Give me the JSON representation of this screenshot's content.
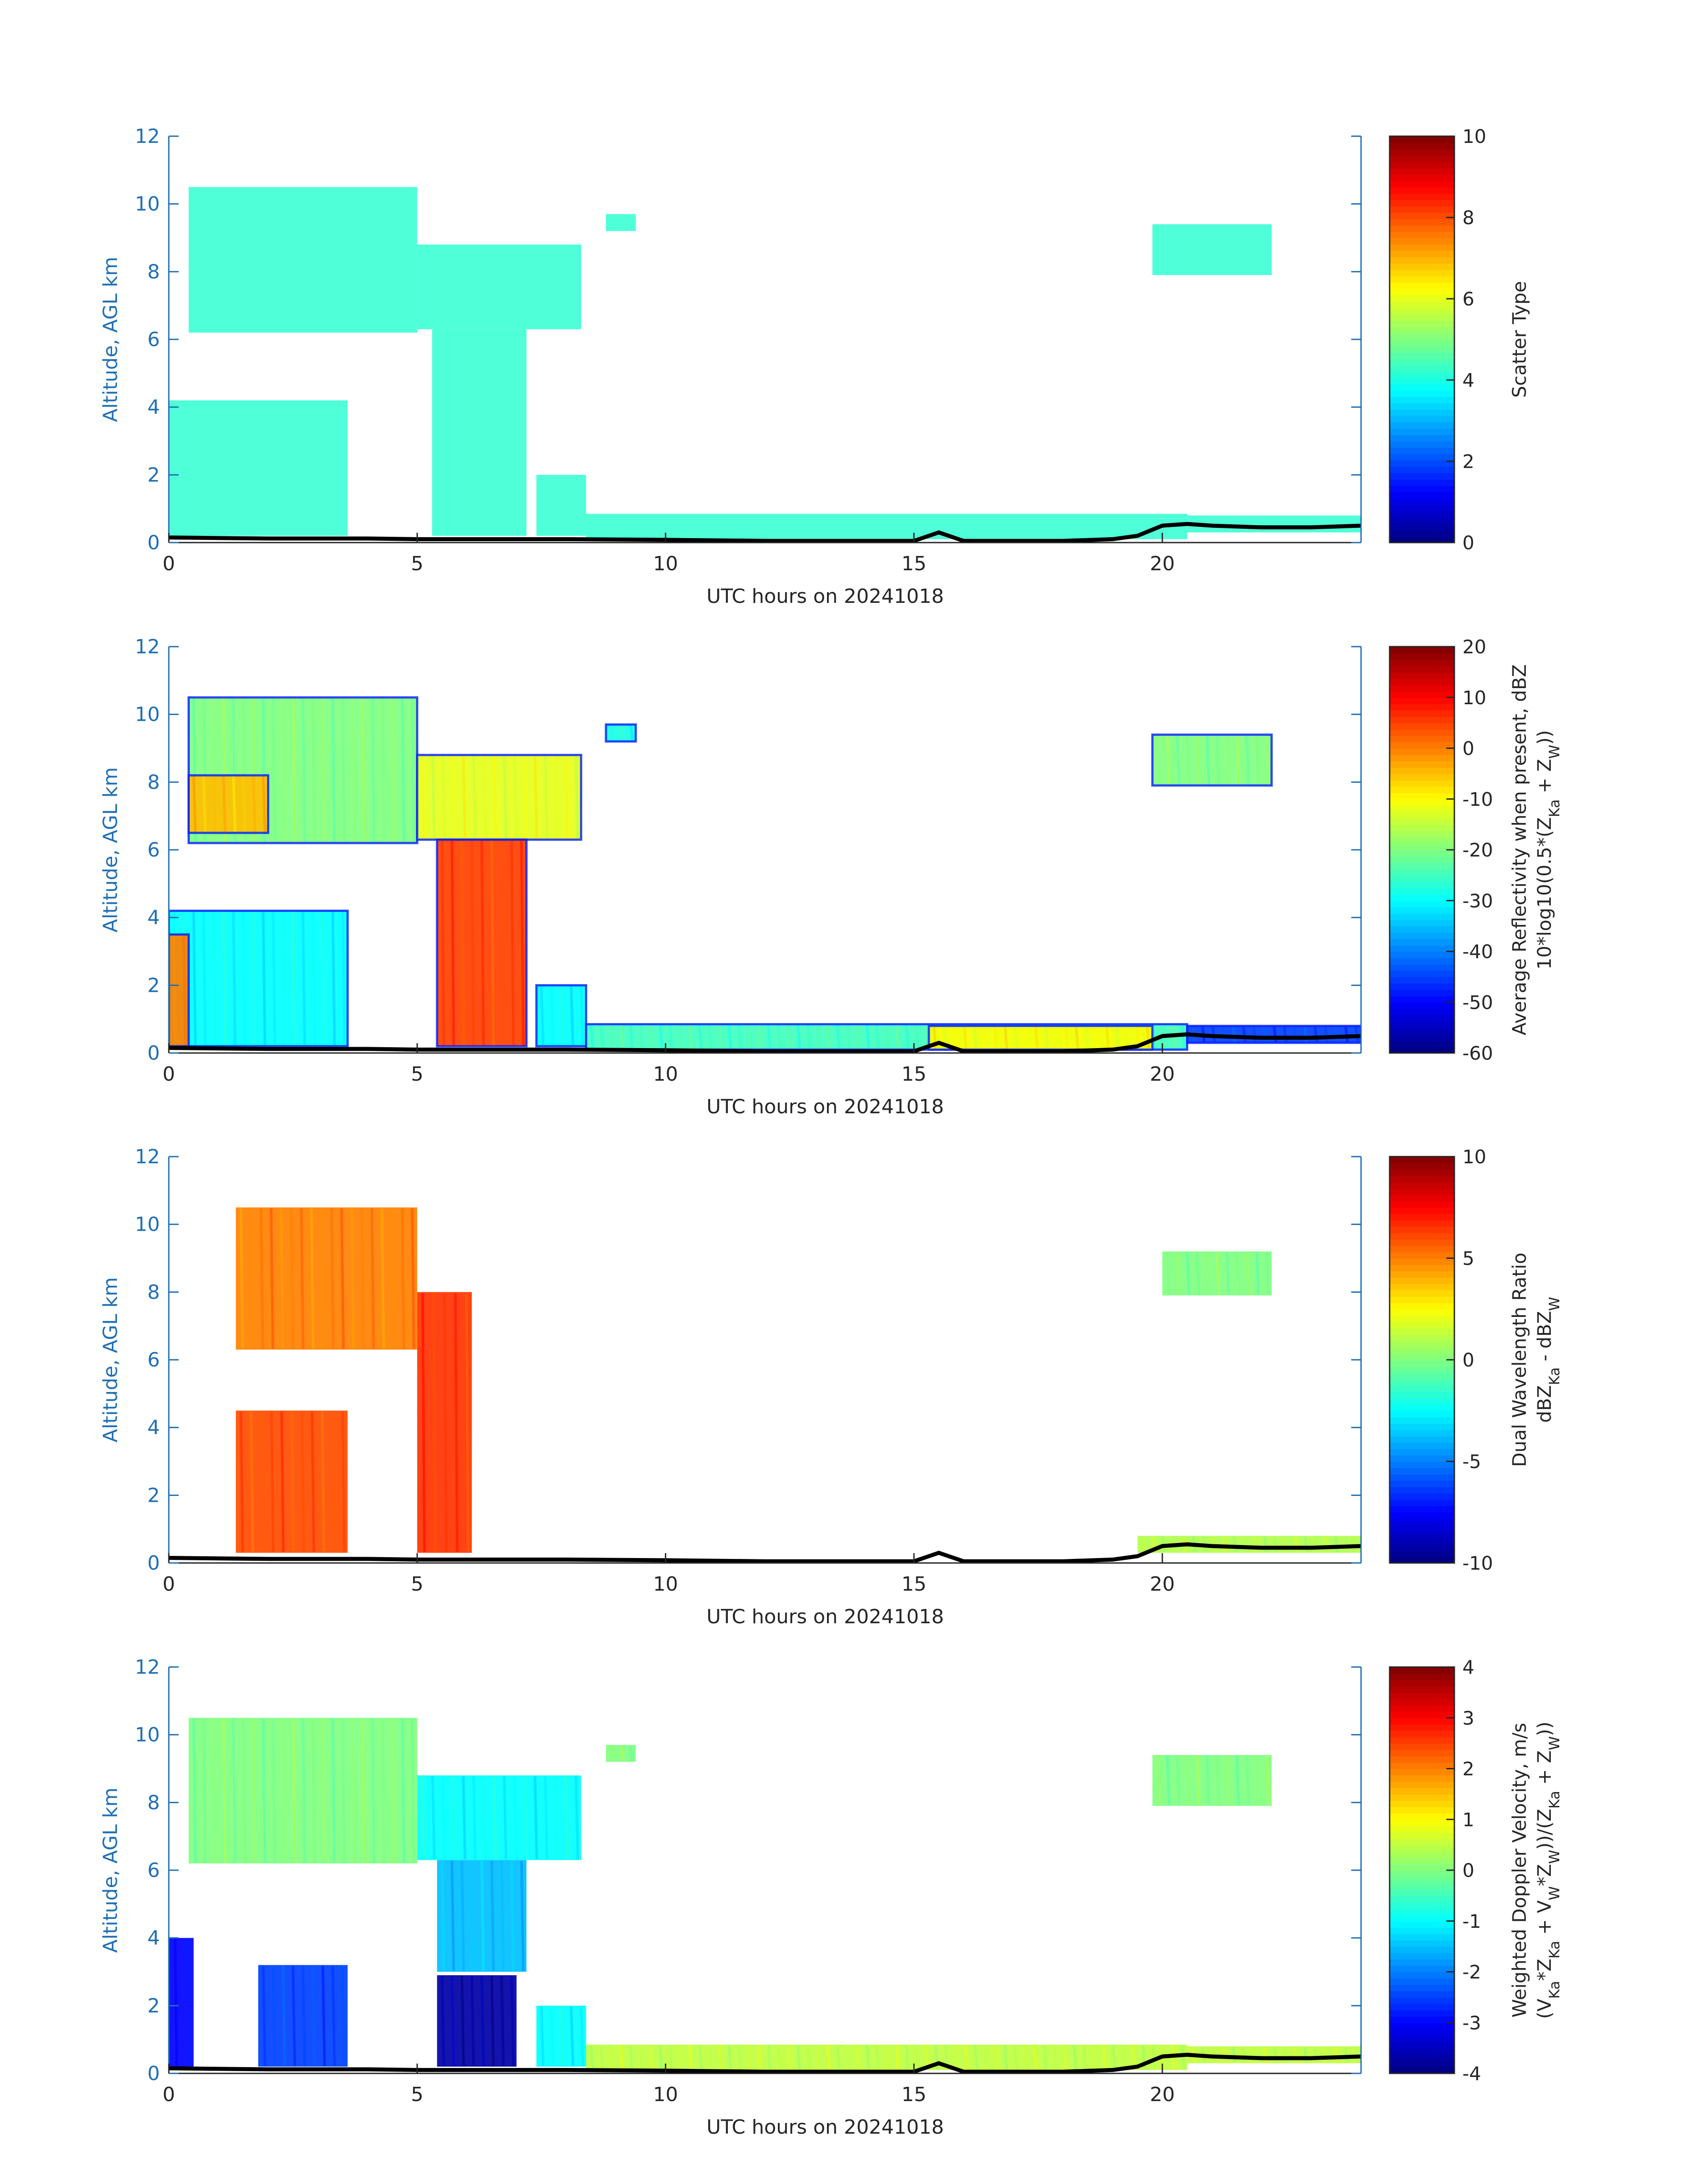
{
  "chart_data": [
    {
      "type": "heatmap",
      "xlabel": "UTC hours on 20241018",
      "ylabel": "Altitude, AGL km",
      "xlim": [
        0,
        24
      ],
      "ylim": [
        0,
        12
      ],
      "xticks": [
        0,
        5,
        10,
        15,
        20
      ],
      "yticks": [
        0,
        2,
        4,
        6,
        8,
        10,
        12
      ],
      "colorbar": {
        "label": [
          "Scatter Type"
        ],
        "range": [
          0,
          10
        ],
        "ticks": [
          0,
          2,
          4,
          6,
          8,
          10
        ],
        "colormap": "jet"
      },
      "mode": "scatter",
      "regions": [
        {
          "x": [
            0.4,
            5.0
          ],
          "y": [
            6.2,
            10.5
          ],
          "value": 4.5
        },
        {
          "x": [
            5.0,
            8.3
          ],
          "y": [
            6.3,
            8.8
          ],
          "value": 4.5
        },
        {
          "x": [
            0.0,
            3.6
          ],
          "y": [
            0.2,
            4.2
          ],
          "value": 4.5
        },
        {
          "x": [
            5.3,
            7.2
          ],
          "y": [
            0.2,
            6.3
          ],
          "value": 4.5
        },
        {
          "x": [
            7.4,
            8.4
          ],
          "y": [
            0.2,
            2.0
          ],
          "value": 4.5
        },
        {
          "x": [
            8.4,
            20.5
          ],
          "y": [
            0.1,
            0.85
          ],
          "value": 4.5
        },
        {
          "x": [
            20.5,
            24.0
          ],
          "y": [
            0.3,
            0.8
          ],
          "value": 4.5
        },
        {
          "x": [
            19.8,
            22.2
          ],
          "y": [
            7.9,
            9.4
          ],
          "value": 4.5
        },
        {
          "x": [
            8.8,
            9.4
          ],
          "y": [
            9.2,
            9.7
          ],
          "value": 4.5
        }
      ]
    },
    {
      "type": "heatmap",
      "xlabel": "UTC hours on 20241018",
      "ylabel": "Altitude, AGL km",
      "xlim": [
        0,
        24
      ],
      "ylim": [
        0,
        12
      ],
      "xticks": [
        0,
        5,
        10,
        15,
        20
      ],
      "yticks": [
        0,
        2,
        4,
        6,
        8,
        10,
        12
      ],
      "colorbar": {
        "label": [
          "Average Reflectivity when present, dBZ",
          "10*log10(0.5*(Z<sub>Ka</sub> + Z<sub>W</sub>))"
        ],
        "range": [
          -60,
          20
        ],
        "ticks": [
          -60,
          -50,
          -40,
          -30,
          -20,
          -10,
          0,
          10,
          20
        ],
        "colormap": "jet"
      },
      "mode": "refl",
      "regions": [
        {
          "x": [
            0.4,
            5.0
          ],
          "y": [
            6.2,
            10.5
          ],
          "value": -20
        },
        {
          "x": [
            0.4,
            2.0
          ],
          "y": [
            6.5,
            8.2
          ],
          "value": -5
        },
        {
          "x": [
            5.0,
            8.3
          ],
          "y": [
            6.3,
            8.8
          ],
          "value": -12
        },
        {
          "x": [
            5.4,
            7.2
          ],
          "y": [
            0.2,
            6.3
          ],
          "value": 5
        },
        {
          "x": [
            0.0,
            3.6
          ],
          "y": [
            0.2,
            4.2
          ],
          "value": -30
        },
        {
          "x": [
            0.0,
            0.4
          ],
          "y": [
            0.2,
            3.5
          ],
          "value": 0
        },
        {
          "x": [
            7.4,
            8.4
          ],
          "y": [
            0.2,
            2.0
          ],
          "value": -30
        },
        {
          "x": [
            8.4,
            20.5
          ],
          "y": [
            0.1,
            0.85
          ],
          "value": -25
        },
        {
          "x": [
            15.3,
            19.8
          ],
          "y": [
            0.1,
            0.8
          ],
          "value": -10
        },
        {
          "x": [
            20.5,
            24.0
          ],
          "y": [
            0.3,
            0.8
          ],
          "value": -45
        },
        {
          "x": [
            19.8,
            22.2
          ],
          "y": [
            7.9,
            9.4
          ],
          "value": -20
        },
        {
          "x": [
            8.8,
            9.4
          ],
          "y": [
            9.2,
            9.7
          ],
          "value": -28
        }
      ]
    },
    {
      "type": "heatmap",
      "xlabel": "UTC hours on 20241018",
      "ylabel": "Altitude, AGL km",
      "xlim": [
        0,
        24
      ],
      "ylim": [
        0,
        12
      ],
      "xticks": [
        0,
        5,
        10,
        15,
        20
      ],
      "yticks": [
        0,
        2,
        4,
        6,
        8,
        10,
        12
      ],
      "colorbar": {
        "label": [
          "Dual Wavelength Ratio",
          "dBZ<sub>Ka</sub> - dBZ<sub>W</sub>"
        ],
        "range": [
          -10,
          10
        ],
        "ticks": [
          -10,
          -5,
          0,
          5,
          10
        ],
        "colormap": "jet"
      },
      "mode": "dwr",
      "regions": [
        {
          "x": [
            1.35,
            5.0
          ],
          "y": [
            6.3,
            10.5
          ],
          "value": 5
        },
        {
          "x": [
            5.0,
            6.1
          ],
          "y": [
            0.3,
            8.0
          ],
          "value": 6.5
        },
        {
          "x": [
            1.35,
            3.6
          ],
          "y": [
            0.3,
            4.5
          ],
          "value": 6
        },
        {
          "x": [
            19.5,
            24.0
          ],
          "y": [
            0.3,
            0.8
          ],
          "value": 1
        },
        {
          "x": [
            20.0,
            22.2
          ],
          "y": [
            7.9,
            9.2
          ],
          "value": 0
        }
      ]
    },
    {
      "type": "heatmap",
      "xlabel": "UTC hours on 20241018",
      "ylabel": "Altitude, AGL km",
      "xlim": [
        0,
        24
      ],
      "ylim": [
        0,
        12
      ],
      "xticks": [
        0,
        5,
        10,
        15,
        20
      ],
      "yticks": [
        0,
        2,
        4,
        6,
        8,
        10,
        12
      ],
      "colorbar": {
        "label": [
          "Weighted Doppler Velocity, m/s",
          "(V<sub>Ka</sub>*Z<sub>Ka</sub> + V<sub>W</sub>*Z<sub>W</sub>))/(Z<sub>Ka</sub> + Z<sub>W</sub>))"
        ],
        "range": [
          -4,
          4
        ],
        "ticks": [
          -4,
          -3,
          -2,
          -1,
          0,
          1,
          2,
          3,
          4
        ],
        "colormap": "jet"
      },
      "mode": "vel",
      "regions": [
        {
          "x": [
            0.4,
            5.0
          ],
          "y": [
            6.2,
            10.5
          ],
          "value": 0
        },
        {
          "x": [
            5.0,
            8.3
          ],
          "y": [
            6.3,
            8.8
          ],
          "value": -1
        },
        {
          "x": [
            5.4,
            7.2
          ],
          "y": [
            3.0,
            6.3
          ],
          "value": -1.5
        },
        {
          "x": [
            5.4,
            7.0
          ],
          "y": [
            0.2,
            2.9
          ],
          "value": -3.7
        },
        {
          "x": [
            0.0,
            0.5
          ],
          "y": [
            0.2,
            4.0
          ],
          "value": -3.0
        },
        {
          "x": [
            1.8,
            3.6
          ],
          "y": [
            0.2,
            3.2
          ],
          "value": -2.5
        },
        {
          "x": [
            7.4,
            8.4
          ],
          "y": [
            0.2,
            2.0
          ],
          "value": -1
        },
        {
          "x": [
            8.4,
            20.5
          ],
          "y": [
            0.1,
            0.85
          ],
          "value": 0.5
        },
        {
          "x": [
            20.5,
            24.0
          ],
          "y": [
            0.3,
            0.8
          ],
          "value": 0.5
        },
        {
          "x": [
            19.8,
            22.2
          ],
          "y": [
            7.9,
            9.4
          ],
          "value": 0
        },
        {
          "x": [
            8.8,
            9.4
          ],
          "y": [
            9.2,
            9.7
          ],
          "value": 0
        }
      ]
    }
  ],
  "ground_line": {
    "x": [
      0,
      2,
      4,
      5,
      6,
      8,
      10,
      12,
      14,
      15,
      15.5,
      16,
      17,
      18,
      19,
      19.5,
      20,
      20.5,
      21,
      22,
      23,
      24
    ],
    "y": [
      0.15,
      0.12,
      0.12,
      0.1,
      0.1,
      0.1,
      0.08,
      0.05,
      0.05,
      0.05,
      0.3,
      0.05,
      0.05,
      0.05,
      0.1,
      0.2,
      0.5,
      0.55,
      0.5,
      0.45,
      0.45,
      0.5
    ]
  }
}
